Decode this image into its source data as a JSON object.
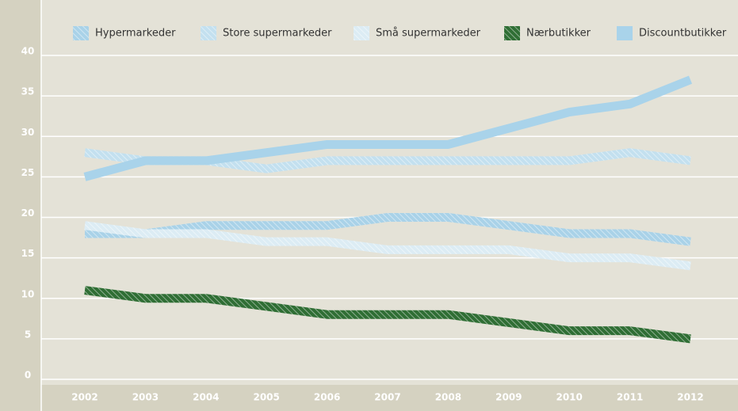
{
  "chart_data": {
    "type": "line",
    "categories": [
      "2002",
      "2003",
      "2004",
      "2005",
      "2006",
      "2007",
      "2008",
      "2009",
      "2010",
      "2011",
      "2012"
    ],
    "series": [
      {
        "name": "Hypermarkeder",
        "color": "#a9d2e8",
        "pattern": "hatched",
        "values": [
          18,
          18,
          19,
          19,
          19,
          20,
          20,
          19,
          18,
          18,
          17
        ]
      },
      {
        "name": "Store supermarkeder",
        "color": "#c3e0ef",
        "pattern": "hatched",
        "values": [
          28,
          27,
          27,
          26,
          27,
          27,
          27,
          27,
          27,
          28,
          27
        ]
      },
      {
        "name": "Små supermarkeder",
        "color": "#dcecf4",
        "pattern": "hatched",
        "values": [
          19,
          18,
          18,
          17,
          17,
          16,
          16,
          16,
          15,
          15,
          14
        ]
      },
      {
        "name": "Nærbutikker",
        "color": "#2f6e34",
        "pattern": "hatched",
        "values": [
          11,
          10,
          10,
          9,
          8,
          8,
          8,
          7,
          6,
          6,
          5
        ]
      },
      {
        "name": "Discountbutikker",
        "color": "#a9d3ea",
        "pattern": "solid",
        "values": [
          25,
          27,
          27,
          28,
          29,
          29,
          29,
          31,
          33,
          34,
          37
        ]
      }
    ],
    "ylim": [
      0,
      40
    ],
    "yticks": [
      0,
      5,
      10,
      15,
      20,
      25,
      30,
      35,
      40
    ],
    "grid": true
  }
}
